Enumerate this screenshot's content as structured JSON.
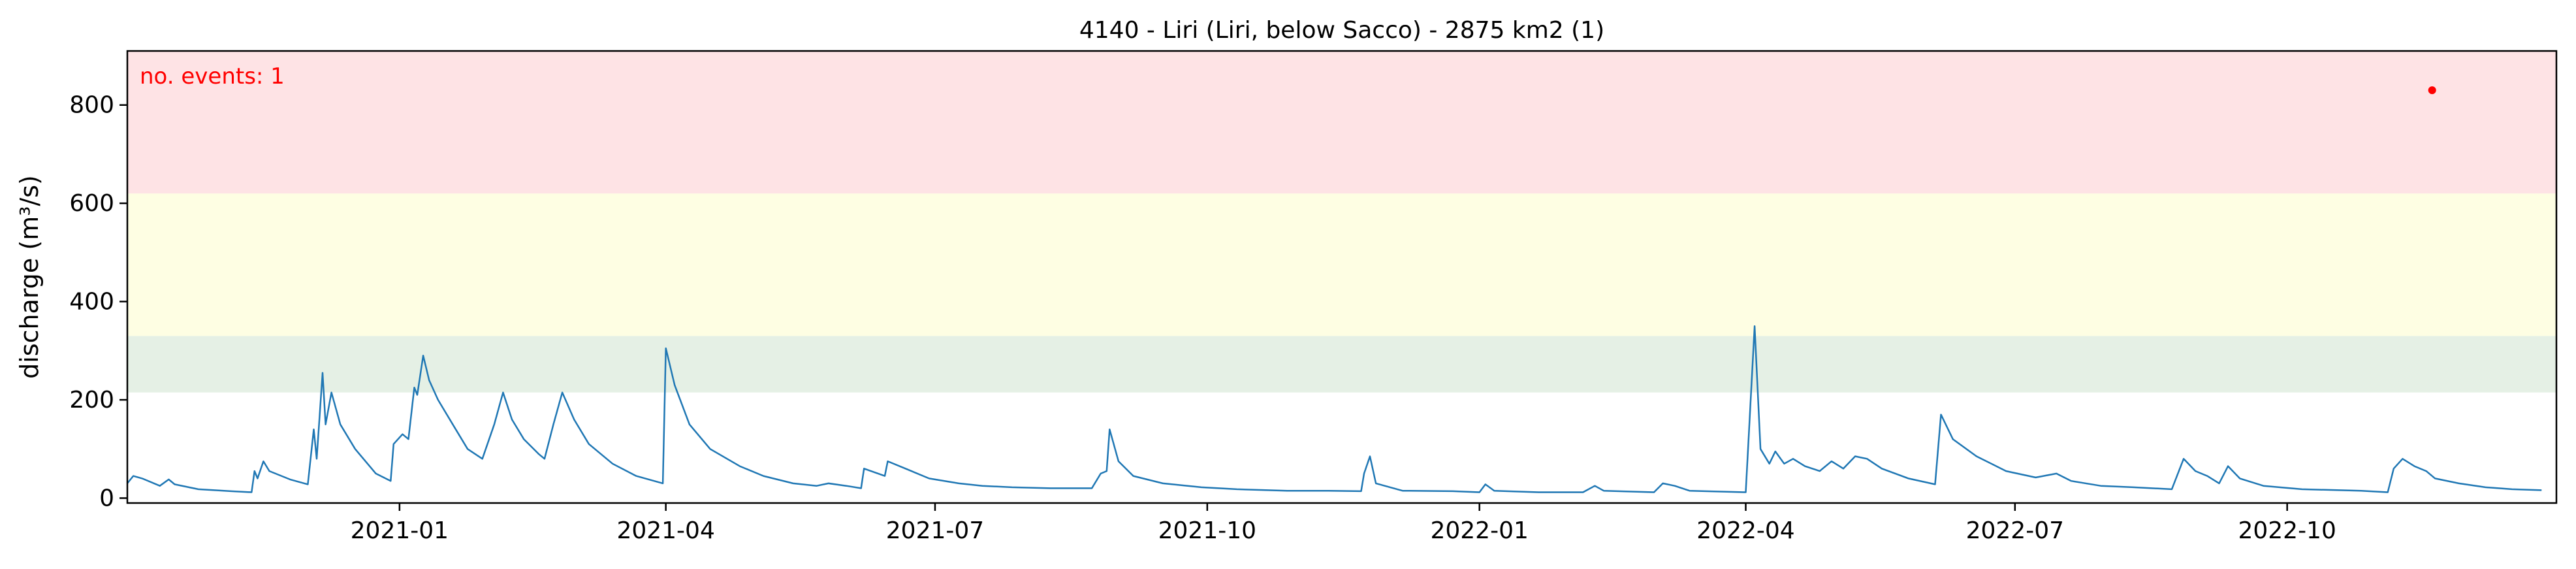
{
  "chart_data": {
    "type": "line",
    "title": "4140 - Liri (Liri, below Sacco) - 2875 km2 (1)",
    "ylabel": "discharge (m³/s)",
    "xlabel": "",
    "xlim": [
      "2020-10-01",
      "2022-12-31"
    ],
    "ylim": [
      -10,
      910
    ],
    "yticks": [
      0,
      200,
      400,
      600,
      800
    ],
    "xticks": [
      {
        "date": "2021-01-01",
        "label": "2021-01"
      },
      {
        "date": "2021-04-01",
        "label": "2021-04"
      },
      {
        "date": "2021-07-01",
        "label": "2021-07"
      },
      {
        "date": "2021-10-01",
        "label": "2021-10"
      },
      {
        "date": "2022-01-01",
        "label": "2022-01"
      },
      {
        "date": "2022-04-01",
        "label": "2022-04"
      },
      {
        "date": "2022-07-01",
        "label": "2022-07"
      },
      {
        "date": "2022-10-01",
        "label": "2022-10"
      }
    ],
    "grid": false,
    "bands": [
      {
        "from": 215,
        "to": 330,
        "color": "#e5f0e5"
      },
      {
        "from": 330,
        "to": 620,
        "color": "#fefee3"
      },
      {
        "from": 620,
        "to": 910,
        "color": "#fee3e5"
      }
    ],
    "annotation": {
      "text": "no. events: 1",
      "color": "#ff0000",
      "position": "top-left"
    },
    "events": [
      {
        "x": "2022-11-19",
        "y": 830,
        "color": "#ff0000"
      }
    ],
    "series_color": "#1f77b4",
    "series": [
      {
        "points": [
          [
            "2020-10-01",
            30
          ],
          [
            "2020-10-03",
            45
          ],
          [
            "2020-10-06",
            40
          ],
          [
            "2020-10-12",
            25
          ],
          [
            "2020-10-15",
            38
          ],
          [
            "2020-10-17",
            28
          ],
          [
            "2020-10-25",
            18
          ],
          [
            "2020-11-05",
            14
          ],
          [
            "2020-11-12",
            12
          ],
          [
            "2020-11-13",
            55
          ],
          [
            "2020-11-14",
            40
          ],
          [
            "2020-11-16",
            75
          ],
          [
            "2020-11-18",
            55
          ],
          [
            "2020-11-25",
            38
          ],
          [
            "2020-12-01",
            28
          ],
          [
            "2020-12-03",
            140
          ],
          [
            "2020-12-04",
            80
          ],
          [
            "2020-12-06",
            255
          ],
          [
            "2020-12-07",
            150
          ],
          [
            "2020-12-09",
            215
          ],
          [
            "2020-12-12",
            150
          ],
          [
            "2020-12-17",
            100
          ],
          [
            "2020-12-24",
            50
          ],
          [
            "2020-12-29",
            35
          ],
          [
            "2020-12-30",
            110
          ],
          [
            "2021-01-02",
            130
          ],
          [
            "2021-01-04",
            120
          ],
          [
            "2021-01-06",
            225
          ],
          [
            "2021-01-07",
            210
          ],
          [
            "2021-01-09",
            290
          ],
          [
            "2021-01-11",
            240
          ],
          [
            "2021-01-14",
            200
          ],
          [
            "2021-01-19",
            150
          ],
          [
            "2021-01-24",
            100
          ],
          [
            "2021-01-29",
            80
          ],
          [
            "2021-02-02",
            150
          ],
          [
            "2021-02-05",
            215
          ],
          [
            "2021-02-08",
            160
          ],
          [
            "2021-02-12",
            120
          ],
          [
            "2021-02-17",
            90
          ],
          [
            "2021-02-19",
            80
          ],
          [
            "2021-02-22",
            150
          ],
          [
            "2021-02-25",
            215
          ],
          [
            "2021-03-01",
            160
          ],
          [
            "2021-03-06",
            110
          ],
          [
            "2021-03-14",
            70
          ],
          [
            "2021-03-22",
            45
          ],
          [
            "2021-03-31",
            30
          ],
          [
            "2021-04-01",
            305
          ],
          [
            "2021-04-04",
            230
          ],
          [
            "2021-04-09",
            150
          ],
          [
            "2021-04-16",
            100
          ],
          [
            "2021-04-26",
            65
          ],
          [
            "2021-05-04",
            45
          ],
          [
            "2021-05-14",
            30
          ],
          [
            "2021-05-22",
            25
          ],
          [
            "2021-05-26",
            30
          ],
          [
            "2021-06-01",
            25
          ],
          [
            "2021-06-06",
            20
          ],
          [
            "2021-06-07",
            60
          ],
          [
            "2021-06-14",
            45
          ],
          [
            "2021-06-15",
            75
          ],
          [
            "2021-06-21",
            60
          ],
          [
            "2021-06-29",
            40
          ],
          [
            "2021-07-09",
            30
          ],
          [
            "2021-07-17",
            25
          ],
          [
            "2021-07-27",
            22
          ],
          [
            "2021-08-09",
            20
          ],
          [
            "2021-08-23",
            20
          ],
          [
            "2021-08-26",
            50
          ],
          [
            "2021-08-28",
            55
          ],
          [
            "2021-08-29",
            140
          ],
          [
            "2021-09-01",
            75
          ],
          [
            "2021-09-06",
            45
          ],
          [
            "2021-09-16",
            30
          ],
          [
            "2021-09-29",
            22
          ],
          [
            "2021-10-11",
            18
          ],
          [
            "2021-10-28",
            15
          ],
          [
            "2021-11-11",
            15
          ],
          [
            "2021-11-22",
            14
          ],
          [
            "2021-11-23",
            50
          ],
          [
            "2021-11-25",
            85
          ],
          [
            "2021-11-27",
            30
          ],
          [
            "2021-12-06",
            15
          ],
          [
            "2021-12-23",
            14
          ],
          [
            "2022-01-01",
            12
          ],
          [
            "2022-01-03",
            28
          ],
          [
            "2022-01-06",
            15
          ],
          [
            "2022-01-21",
            12
          ],
          [
            "2022-02-05",
            12
          ],
          [
            "2022-02-09",
            25
          ],
          [
            "2022-02-12",
            15
          ],
          [
            "2022-03-01",
            12
          ],
          [
            "2022-03-04",
            30
          ],
          [
            "2022-03-08",
            25
          ],
          [
            "2022-03-13",
            15
          ],
          [
            "2022-04-01",
            12
          ],
          [
            "2022-04-04",
            350
          ],
          [
            "2022-04-06",
            100
          ],
          [
            "2022-04-09",
            70
          ],
          [
            "2022-04-11",
            95
          ],
          [
            "2022-04-14",
            70
          ],
          [
            "2022-04-17",
            80
          ],
          [
            "2022-04-21",
            65
          ],
          [
            "2022-04-26",
            55
          ],
          [
            "2022-04-30",
            75
          ],
          [
            "2022-05-04",
            60
          ],
          [
            "2022-05-08",
            85
          ],
          [
            "2022-05-12",
            80
          ],
          [
            "2022-05-17",
            60
          ],
          [
            "2022-05-26",
            40
          ],
          [
            "2022-06-04",
            28
          ],
          [
            "2022-06-06",
            170
          ],
          [
            "2022-06-10",
            120
          ],
          [
            "2022-06-18",
            85
          ],
          [
            "2022-06-28",
            55
          ],
          [
            "2022-07-08",
            42
          ],
          [
            "2022-07-15",
            50
          ],
          [
            "2022-07-20",
            35
          ],
          [
            "2022-07-30",
            25
          ],
          [
            "2022-08-10",
            22
          ],
          [
            "2022-08-23",
            18
          ],
          [
            "2022-08-27",
            80
          ],
          [
            "2022-08-31",
            55
          ],
          [
            "2022-09-04",
            45
          ],
          [
            "2022-09-08",
            30
          ],
          [
            "2022-09-11",
            65
          ],
          [
            "2022-09-15",
            40
          ],
          [
            "2022-09-23",
            25
          ],
          [
            "2022-10-06",
            18
          ],
          [
            "2022-10-26",
            15
          ],
          [
            "2022-11-04",
            12
          ],
          [
            "2022-11-06",
            60
          ],
          [
            "2022-11-09",
            80
          ],
          [
            "2022-11-13",
            65
          ],
          [
            "2022-11-17",
            55
          ],
          [
            "2022-11-20",
            40
          ],
          [
            "2022-11-28",
            30
          ],
          [
            "2022-12-07",
            22
          ],
          [
            "2022-12-16",
            18
          ],
          [
            "2022-12-26",
            16
          ]
        ]
      }
    ]
  }
}
